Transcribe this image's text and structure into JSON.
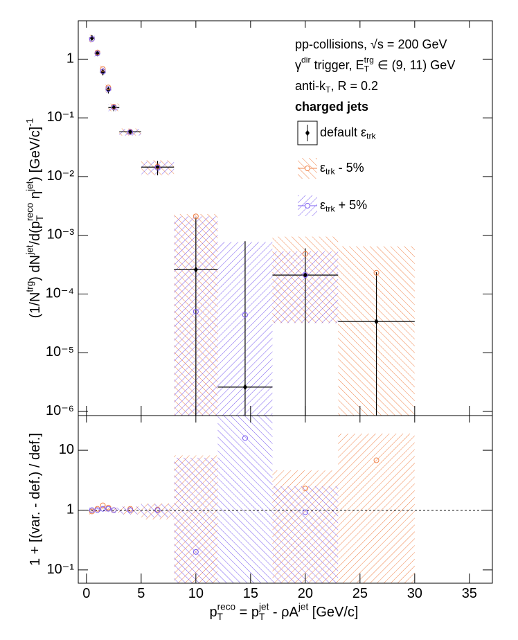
{
  "chart_data": [
    {
      "type": "errorbar",
      "log_y": true,
      "ylabel": "(1/N^{trg}) dN^{jet}/d(p_{T}^{reco} η^{jet}) [GeV/c]^{-1}",
      "texts": [
        "pp-collisions, √s = 200 GeV",
        "γ^{dir} trigger, E_{T}^{trg} ∈ (9, 11) GeV",
        "anti-k_{T}, R = 0.2"
      ],
      "legend_title": "charged jets",
      "xlim": [
        -0.75,
        37.1
      ],
      "xticks": [
        0,
        5,
        10,
        15,
        20,
        25,
        30,
        35
      ],
      "ylim": [
        8.5e-07,
        4.5
      ],
      "yticks": [
        {
          "value": 1e-06,
          "label": "10⁻⁶"
        },
        {
          "value": 1e-05,
          "label": "10⁻⁵"
        },
        {
          "value": 0.0001,
          "label": "10⁻⁴"
        },
        {
          "value": 0.001,
          "label": "10⁻³"
        },
        {
          "value": 0.01,
          "label": "10⁻²"
        },
        {
          "value": 0.1,
          "label": "10⁻¹"
        },
        1
      ],
      "x": [
        0.5,
        1.0,
        1.5,
        2.0,
        2.5,
        4,
        6.5,
        10,
        14.5,
        20,
        26.5
      ],
      "x_low": [
        0.25,
        0.75,
        1.25,
        1.75,
        2.0,
        3,
        5,
        8,
        12,
        17,
        23
      ],
      "x_high": [
        0.75,
        1.25,
        1.75,
        2.25,
        3,
        5,
        8,
        12,
        17,
        23,
        30
      ],
      "series": [
        {
          "name": "default ε_{trk}",
          "color": "#000000",
          "values": [
            2.3,
            1.25,
            0.6,
            0.3,
            0.15,
            0.058,
            0.0145,
            0.00026,
            2.6e-06,
            0.00021,
            3.4e-05
          ],
          "err_low": [
            0.2,
            0.1,
            0.07,
            0.04,
            0.02,
            0.006,
            0.004,
            0.00026,
            2.6e-06,
            0.00021,
            3.4e-05
          ],
          "err_high": [
            0.2,
            0.1,
            0.07,
            0.04,
            0.02,
            0.006,
            0.004,
            0.00174,
            0.00079,
            0.00039,
            0.0002
          ]
        },
        {
          "name": "ε_{trk} - 5%",
          "color": "#f0834a",
          "values": [
            2.2,
            1.3,
            0.68,
            0.33,
            0.155,
            0.058,
            0.0148,
            0.0021,
            null,
            0.00048,
            0.00023
          ],
          "band_low": [
            1.9,
            1.15,
            0.55,
            0.27,
            0.13,
            0.05,
            0.0105,
            8.5e-07,
            null,
            3.2e-05,
            8.5e-07
          ],
          "band_high": [
            2.6,
            1.45,
            0.78,
            0.38,
            0.175,
            0.066,
            0.019,
            0.0023,
            null,
            0.00095,
            0.00065
          ]
        },
        {
          "name": "ε_{trk} + 5%",
          "color": "#7a5cf0",
          "values": [
            2.2,
            1.25,
            0.62,
            0.31,
            0.15,
            0.057,
            0.0142,
            5e-05,
            4.4e-05,
            0.00021,
            null
          ],
          "band_low": [
            2.0,
            1.1,
            0.55,
            0.27,
            0.13,
            0.05,
            0.011,
            8.5e-07,
            8.5e-07,
            3.2e-05,
            null
          ],
          "band_high": [
            2.5,
            1.4,
            0.72,
            0.36,
            0.17,
            0.065,
            0.018,
            0.0021,
            0.00077,
            0.00053,
            null
          ]
        }
      ]
    },
    {
      "type": "errorbar",
      "log_y": true,
      "ylabel": "1 + [(var. - def.) / def.]",
      "xlabel": "p_{T}^{reco} = p_{T}^{jet} - ρA^{jet} [GeV/c]",
      "reference": 1,
      "xlim": [
        -0.75,
        37.1
      ],
      "xticks": [
        0,
        5,
        10,
        15,
        20,
        25,
        30,
        35
      ],
      "ylim": [
        0.06,
        38
      ],
      "yticks": [
        {
          "value": 0.1,
          "label": "10⁻¹"
        },
        1,
        10
      ],
      "x": [
        0.5,
        1.0,
        1.5,
        2.0,
        2.5,
        4,
        6.5,
        10,
        14.5,
        20,
        26.5
      ],
      "x_low": [
        0.25,
        0.75,
        1.25,
        1.75,
        2.0,
        3,
        5,
        8,
        12,
        17,
        23
      ],
      "x_high": [
        0.75,
        1.25,
        1.75,
        2.25,
        3,
        5,
        8,
        12,
        17,
        23,
        30
      ],
      "series": [
        {
          "color": "#f0834a",
          "values": [
            0.95,
            1.05,
            1.2,
            1.1,
            1.0,
            1.05,
            1.02,
            null,
            null,
            2.3,
            6.8
          ],
          "band_low": [
            0.85,
            0.9,
            0.95,
            0.9,
            0.9,
            0.85,
            0.7,
            0.06,
            null,
            0.06,
            0.06
          ],
          "band_high": [
            1.1,
            1.15,
            1.25,
            1.2,
            1.1,
            1.15,
            1.3,
            8.2,
            null,
            4.6,
            19
          ]
        },
        {
          "color": "#7a5cf0",
          "values": [
            1.0,
            1.0,
            1.05,
            1.05,
            1.0,
            1.0,
            1.0,
            0.2,
            16,
            0.92,
            null
          ],
          "band_low": [
            0.9,
            0.9,
            0.95,
            0.95,
            0.9,
            0.85,
            0.75,
            0.06,
            0.06,
            0.06,
            null
          ],
          "band_high": [
            1.1,
            1.1,
            1.15,
            1.15,
            1.1,
            1.15,
            1.25,
            7.5,
            38,
            2.5,
            null
          ]
        }
      ]
    }
  ]
}
